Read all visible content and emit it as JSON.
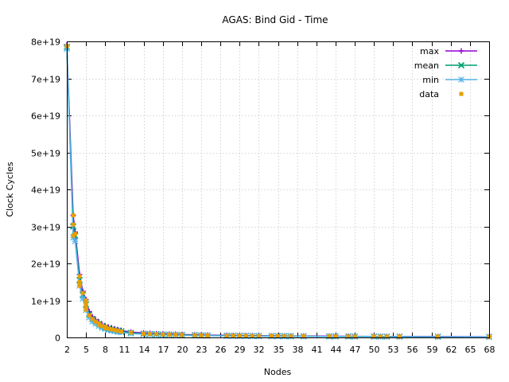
{
  "chart_data": {
    "type": "line",
    "title": "AGAS: Bind Gid - Time",
    "xlabel": "Nodes",
    "ylabel": "Clock Cycles",
    "xlim": [
      2,
      68
    ],
    "ylim": [
      0,
      8e+19
    ],
    "x_ticks": [
      2,
      5,
      8,
      11,
      14,
      17,
      20,
      23,
      26,
      29,
      32,
      35,
      38,
      41,
      44,
      47,
      50,
      53,
      56,
      59,
      62,
      65,
      68
    ],
    "x_tick_labels": [
      "2",
      "5",
      "8",
      "11",
      "14",
      "17",
      "20",
      "23",
      "26",
      "29",
      "32",
      "35",
      "38",
      "41",
      "44",
      "47",
      "50",
      "53",
      "56",
      "59",
      "62",
      "65",
      "68"
    ],
    "y_ticks": [
      0,
      1e+19,
      2e+19,
      3e+19,
      4e+19,
      5e+19,
      6e+19,
      7e+19,
      8e+19
    ],
    "y_tick_labels": [
      "0",
      "1e+19",
      "2e+19",
      "3e+19",
      "4e+19",
      "5e+19",
      "6e+19",
      "7e+19",
      "8e+19"
    ],
    "grid": true,
    "legend_position": "top-right",
    "x": [
      2,
      3,
      3.3,
      4,
      4.5,
      5,
      5.5,
      6,
      6.5,
      7,
      7.5,
      8,
      8.5,
      9,
      9.5,
      10,
      10.5,
      12,
      14,
      15,
      16,
      17,
      18,
      19,
      20,
      22,
      23,
      24,
      27,
      28,
      29,
      30,
      31,
      32,
      34,
      35,
      36,
      37,
      39,
      43,
      44,
      46,
      47,
      50,
      51,
      52,
      54,
      60,
      68
    ],
    "series": [
      {
        "name": "max",
        "color": "#9400d3",
        "marker": "plus",
        "values": [
          7.9e+19,
          3.3e+19,
          2.85e+19,
          1.7e+19,
          1.25e+19,
          1.02e+19,
          7e+18,
          5.6e+18,
          4.8e+18,
          4.2e+18,
          3.5e+18,
          3.1e+18,
          2.8e+18,
          2.6e+18,
          2.3e+18,
          2.1e+18,
          1.9e+18,
          1.45e+18,
          1.2e+18,
          1.1e+18,
          1e+18,
          9.5e+17,
          9e+17,
          8.5e+17,
          7.8e+17,
          7e+17,
          6.6e+17,
          6.2e+17,
          5.6e+17,
          5.4e+17,
          5.2e+17,
          5e+17,
          4.8e+17,
          4.6e+17,
          4.4e+17,
          4.2e+17,
          4e+17,
          3.9e+17,
          3.7e+17,
          3.4e+17,
          3.3e+17,
          3.2e+17,
          3.1e+17,
          2.9e+17,
          2.8e+17,
          2.7e+17,
          2.6e+17,
          2.3e+17,
          2e+17
        ]
      },
      {
        "name": "mean",
        "color": "#009e73",
        "marker": "cross",
        "values": [
          7.85e+19,
          3e+19,
          2.75e+19,
          1.55e+19,
          1.15e+19,
          8.9e+18,
          6.2e+18,
          5e+18,
          4.3e+18,
          3.7e+18,
          3.1e+18,
          2.7e+18,
          2.4e+18,
          2.2e+18,
          2e+18,
          1.8e+18,
          1.65e+18,
          1.25e+18,
          1e+18,
          9.2e+17,
          8.6e+17,
          8e+17,
          7.6e+17,
          7.2e+17,
          6.6e+17,
          6e+17,
          5.6e+17,
          5.3e+17,
          4.7e+17,
          4.5e+17,
          4.3e+17,
          4.2e+17,
          4e+17,
          3.9e+17,
          3.7e+17,
          3.6e+17,
          3.5e+17,
          3.4e+17,
          3.2e+17,
          2.9e+17,
          2.8e+17,
          2.7e+17,
          2.6e+17,
          2.5e+17,
          2.4e+17,
          2.3e+17,
          2.2e+17,
          2e+17,
          1.8e+17
        ]
      },
      {
        "name": "min",
        "color": "#56b4e9",
        "marker": "star",
        "values": [
          7.8e+19,
          2.7e+19,
          2.6e+19,
          1.4e+19,
          1.05e+19,
          7.4e+18,
          5.4e+18,
          4.3e+18,
          3.7e+18,
          3.1e+18,
          2.6e+18,
          2.3e+18,
          2e+18,
          1.85e+18,
          1.7e+18,
          1.5e+18,
          1.4e+18,
          1.05e+18,
          8.5e+17,
          7.8e+17,
          7.2e+17,
          6.8e+17,
          6.4e+17,
          6e+17,
          5.5e+17,
          5e+17,
          4.7e+17,
          4.5e+17,
          4e+17,
          3.8e+17,
          3.6e+17,
          3.5e+17,
          3.4e+17,
          3.3e+17,
          3.1e+17,
          3e+17,
          2.9e+17,
          2.8e+17,
          2.7e+17,
          2.4e+17,
          2.3e+17,
          2.2e+17,
          2.2e+17,
          2.1e+17,
          2e+17,
          1.9e+17,
          1.9e+17,
          1.7e+17,
          1.5e+17
        ]
      }
    ],
    "data_points": {
      "name": "data",
      "color": "#e69f00",
      "marker": "square",
      "x": [
        2,
        3,
        3,
        3,
        3.3,
        4,
        4,
        4,
        4.5,
        5,
        5,
        5,
        5,
        5.5,
        6,
        6.5,
        7,
        7,
        7.5,
        8,
        8,
        8.5,
        9,
        9.5,
        10,
        10.5,
        12,
        14,
        15,
        16,
        17,
        18,
        19,
        20,
        22,
        23,
        24,
        27,
        28,
        29,
        30,
        31,
        32,
        34,
        35,
        36,
        37,
        39,
        43,
        44,
        46,
        47,
        50,
        51,
        52,
        54,
        60,
        68
      ],
      "y": [
        7.87e+19,
        3.3e+19,
        3.05e+19,
        2.75e+19,
        2.8e+19,
        1.65e+19,
        1.5e+19,
        1.4e+19,
        1.2e+19,
        1e+19,
        9e+18,
        8e+18,
        7.5e+18,
        6e+18,
        5e+18,
        4.3e+18,
        3.8e+18,
        3.4e+18,
        3.1e+18,
        2.9e+18,
        2.5e+18,
        2.4e+18,
        2.2e+18,
        2e+18,
        1.8e+18,
        1.6e+18,
        1.3e+18,
        1e+18,
        9.2e+17,
        8.6e+17,
        8e+17,
        7.6e+17,
        7.2e+17,
        6.6e+17,
        6e+17,
        5.6e+17,
        5.3e+17,
        4.7e+17,
        4.5e+17,
        4.3e+17,
        4.2e+17,
        4e+17,
        3.9e+17,
        3.7e+17,
        3.6e+17,
        3.5e+17,
        3.4e+17,
        3.2e+17,
        2.9e+17,
        2.8e+17,
        2.7e+17,
        2.6e+17,
        2.5e+17,
        2.4e+17,
        2.3e+17,
        2.2e+17,
        2e+17,
        1.8e+17
      ]
    }
  }
}
